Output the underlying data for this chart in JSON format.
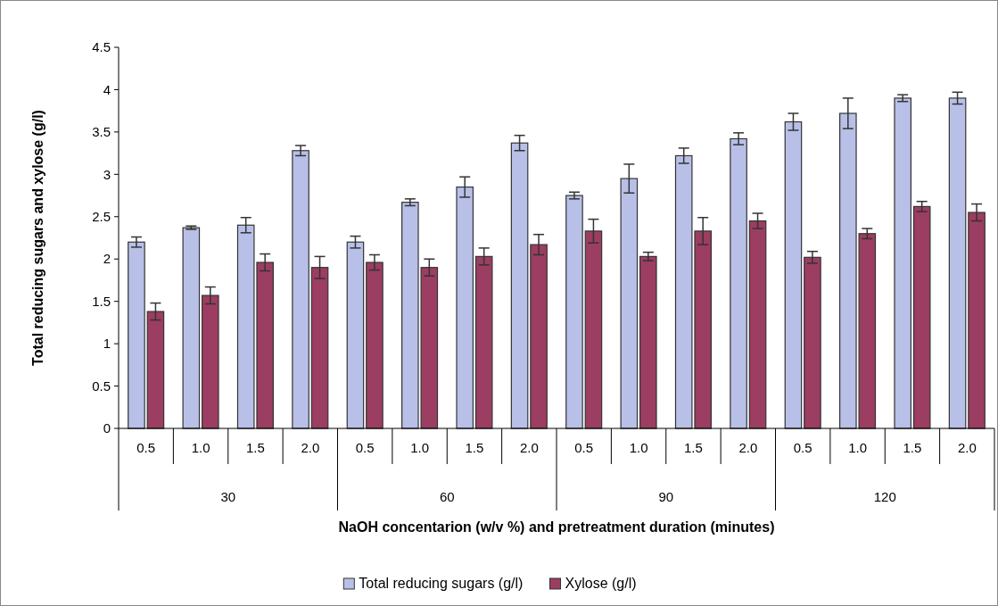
{
  "chart_data": {
    "type": "bar",
    "xlabel": "NaOH concentarion (w/v %) and pretreatment duration (minutes)",
    "ylabel": "Total reducing sugars and xylose (g/l)",
    "categories": [
      "0.5",
      "1.0",
      "1.5",
      "2.0",
      "0.5",
      "1.0",
      "1.5",
      "2.0",
      "0.5",
      "1.0",
      "1.5",
      "2.0",
      "0.5",
      "1.0",
      "1.5",
      "2.0"
    ],
    "annotations": [
      "30",
      "60",
      "90",
      "120"
    ],
    "series": [
      {
        "name": "Total reducing sugars (g/l)",
        "color": "#b8c0e8",
        "values": [
          2.2,
          2.37,
          2.4,
          3.28,
          2.2,
          2.67,
          2.85,
          3.37,
          2.75,
          2.95,
          3.22,
          3.42,
          3.62,
          3.72,
          3.9,
          3.9
        ],
        "errors": [
          0.06,
          0.02,
          0.09,
          0.06,
          0.07,
          0.04,
          0.12,
          0.09,
          0.04,
          0.17,
          0.09,
          0.07,
          0.1,
          0.18,
          0.04,
          0.07
        ]
      },
      {
        "name": "Xylose (g/l)",
        "color": "#9c3d62",
        "values": [
          1.38,
          1.57,
          1.96,
          1.9,
          1.96,
          1.9,
          2.03,
          2.17,
          2.33,
          2.03,
          2.33,
          2.45,
          2.02,
          2.3,
          2.62,
          2.55
        ],
        "errors": [
          0.1,
          0.1,
          0.1,
          0.13,
          0.09,
          0.1,
          0.1,
          0.12,
          0.14,
          0.05,
          0.16,
          0.09,
          0.07,
          0.06,
          0.06,
          0.1
        ]
      }
    ],
    "ylim": [
      0,
      4.5
    ],
    "yticks": [
      0,
      0.5,
      1,
      1.5,
      2,
      2.5,
      3,
      3.5,
      4,
      4.5
    ],
    "grid": false,
    "legend": "bottom"
  }
}
